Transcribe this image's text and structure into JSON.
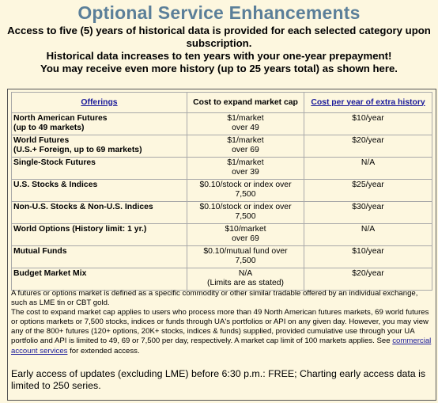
{
  "title": "Optional Service Enhancements",
  "intro": [
    "Access to five (5) years of historical data is provided for each selected category upon",
    "subscription.",
    "Historical data increases to ten years with your one-year prepayment!",
    "You may receive even more history (up to 25 years total) as shown here."
  ],
  "table": {
    "headers": {
      "offerings": "Offerings",
      "cost": "Cost to expand market cap",
      "history": "Cost per year of extra history"
    },
    "rows": [
      {
        "offering": [
          "North American Futures",
          "(up to 49 markets)"
        ],
        "cost": [
          "$1/market",
          "over 49"
        ],
        "history": "$10/year"
      },
      {
        "offering": [
          "World Futures",
          "(U.S.+ Foreign, up to 69 markets)"
        ],
        "cost": [
          "$1/market",
          "over 69"
        ],
        "history": "$20/year"
      },
      {
        "offering": [
          "Single-Stock Futures"
        ],
        "cost": [
          "$1/market",
          "over 39"
        ],
        "history": "N/A"
      },
      {
        "offering": [
          "U.S. Stocks & Indices"
        ],
        "cost": [
          "$0.10/stock or index over",
          "7,500"
        ],
        "history": "$25/year"
      },
      {
        "offering": [
          "Non-U.S. Stocks & Non-U.S. Indices"
        ],
        "cost": [
          "$0.10/stock or index over",
          "7,500"
        ],
        "history": "$30/year"
      },
      {
        "offering": [
          "World Options (History limit: 1 yr.)"
        ],
        "cost": [
          "$10/market",
          "over 69"
        ],
        "history": "N/A"
      },
      {
        "offering": [
          "Mutual Funds"
        ],
        "cost": [
          "$0.10/mutual fund over",
          "7,500"
        ],
        "history": "$10/year"
      },
      {
        "offering": [
          "Budget Market Mix"
        ],
        "cost": [
          "N/A",
          "(Limits are as stated)"
        ],
        "history": "$20/year"
      }
    ]
  },
  "notes": {
    "futures_definition": "A futures or options market is defined as a specific commodity or other similar tradable offered by an individual exchange, such as LME tin or CBT gold.",
    "market_cap_text_before_link": "The cost to expand market cap applies to users who process more than 49 North American futures markets, 69 world futures or options markets or 7,500 stocks, indices or funds through UA's portfolios or API on any given day. However, you may view any of the 800+ futures (120+ options, 20K+ stocks, indices & funds) supplied, provided cumulative use through your UA portfolio and API is limited to 49, 69 or 7,500 per day, respectively. A market cap limit of 100 markets applies. See ",
    "market_cap_link": "commercial account services",
    "market_cap_text_after_link": " for extended access."
  },
  "footer": "Early access of updates (excluding LME) before 6:30 p.m.: FREE; Charting early access data is limited to 250 series."
}
